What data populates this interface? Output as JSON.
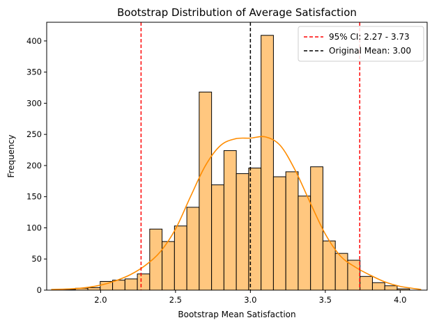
{
  "chart_data": {
    "type": "histogram",
    "title": "Bootstrap Distribution of Average Satisfaction",
    "xlabel": "Bootstrap Mean Satisfaction",
    "ylabel": "Frequency",
    "xlim": [
      1.64,
      4.18
    ],
    "ylim": [
      0,
      430
    ],
    "xticks": [
      2.0,
      2.5,
      3.0,
      3.5,
      4.0
    ],
    "xtick_labels": [
      "2.0",
      "2.5",
      "3.0",
      "3.5",
      "4.0"
    ],
    "yticks": [
      0,
      50,
      100,
      150,
      200,
      250,
      300,
      350,
      400
    ],
    "ytick_labels": [
      "0",
      "50",
      "100",
      "150",
      "200",
      "250",
      "300",
      "350",
      "400"
    ],
    "bin_start": 1.667,
    "bin_width": 0.0826,
    "counts": [
      0,
      1,
      3,
      4,
      14,
      16,
      18,
      26,
      98,
      78,
      103,
      133,
      318,
      169,
      224,
      187,
      196,
      409,
      182,
      190,
      151,
      198,
      79,
      59,
      48,
      22,
      12,
      7,
      2,
      0
    ],
    "kde": {
      "x": [
        1.67,
        1.8,
        1.9,
        2.0,
        2.1,
        2.2,
        2.3,
        2.4,
        2.5,
        2.6,
        2.7,
        2.8,
        2.9,
        3.0,
        3.1,
        3.2,
        3.3,
        3.4,
        3.5,
        3.6,
        3.7,
        3.8,
        3.9,
        4.0,
        4.14
      ],
      "y": [
        1,
        2,
        4,
        8,
        15,
        25,
        40,
        62,
        98,
        150,
        200,
        232,
        243,
        244,
        246,
        232,
        192,
        140,
        90,
        55,
        37,
        24,
        13,
        6,
        1
      ]
    },
    "vlines": [
      {
        "x": 2.27,
        "color": "#ff0000",
        "style": "dashed",
        "label": "95% CI: 2.27 - 3.73"
      },
      {
        "x": 3.73,
        "color": "#ff0000",
        "style": "dashed",
        "label": ""
      },
      {
        "x": 3.0,
        "color": "#000000",
        "style": "dashed",
        "label": "Original Mean: 3.00"
      }
    ],
    "legend": [
      "95% CI: 2.27 - 3.73",
      "Original Mean: 3.00"
    ],
    "legend_position": "top-right",
    "colors": {
      "bar_fill": "#ffc77f",
      "bar_edge": "#000000",
      "kde": "#ff8c00",
      "ci": "#ff0000",
      "mean": "#000000"
    }
  }
}
